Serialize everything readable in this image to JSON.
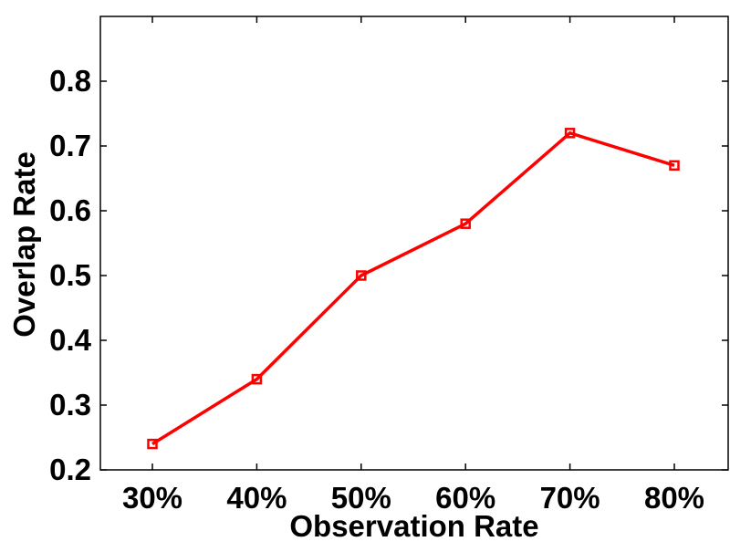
{
  "chart_data": {
    "type": "line",
    "xlabel": "Observation Rate",
    "ylabel": "Overlap Rate",
    "categories": [
      "30%",
      "40%",
      "50%",
      "60%",
      "70%",
      "80%"
    ],
    "series": [
      {
        "values": [
          0.24,
          0.34,
          0.5,
          0.58,
          0.72,
          0.67
        ],
        "color": "#ff0000",
        "marker": "square"
      }
    ],
    "ylim": [
      0.2,
      0.9
    ],
    "yticks": [
      0.2,
      0.3,
      0.4,
      0.5,
      0.6,
      0.7,
      0.8
    ],
    "ytick_labels": [
      "0.2",
      "0.3",
      "0.4",
      "0.5",
      "0.6",
      "0.7",
      "0.8"
    ],
    "grid": false,
    "legend": "none"
  }
}
